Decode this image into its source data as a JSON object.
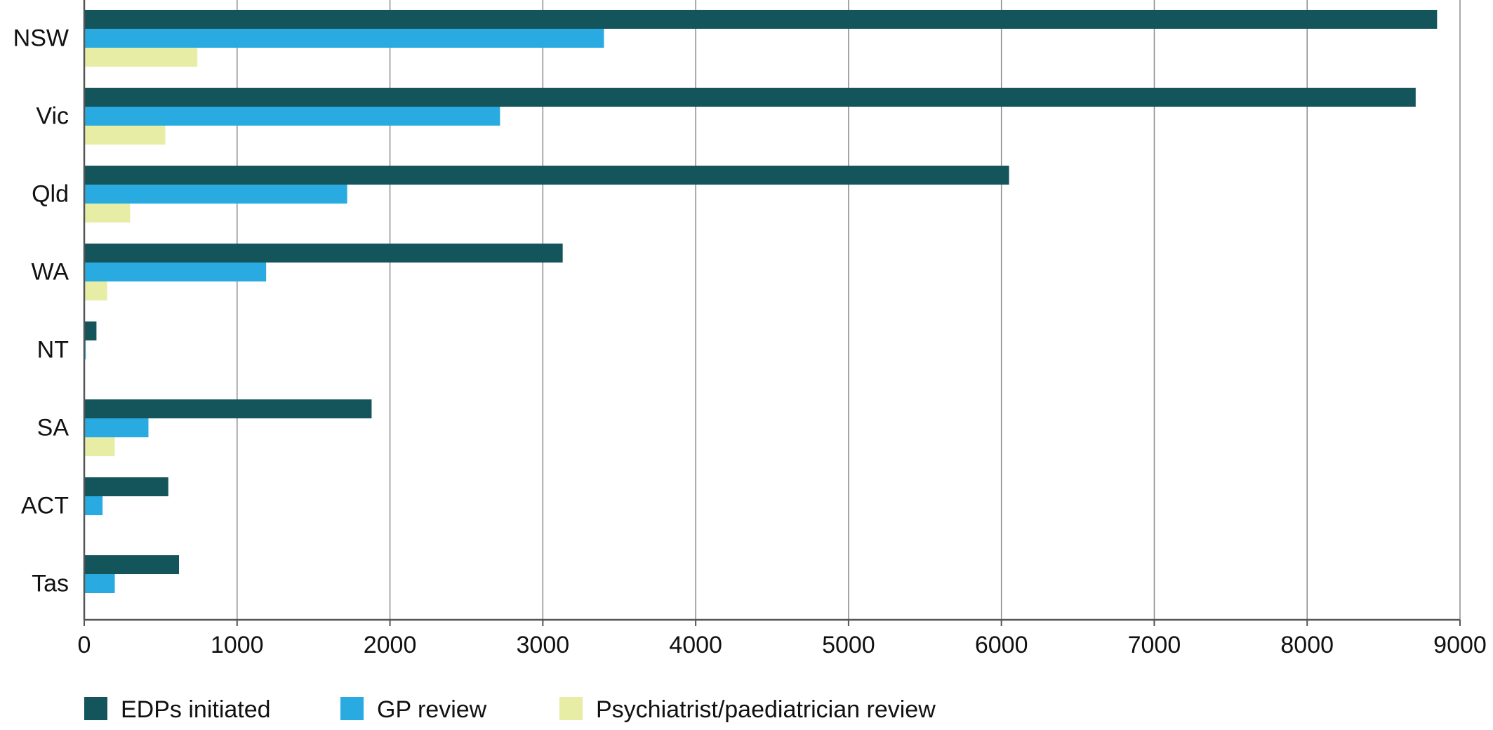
{
  "chart_data": {
    "type": "bar",
    "orientation": "horizontal",
    "categories": [
      "NSW",
      "Vic",
      "Qld",
      "WA",
      "NT",
      "SA",
      "ACT",
      "Tas"
    ],
    "series": [
      {
        "name": "EDPs initiated",
        "color": "#14555c",
        "values": [
          8850,
          8710,
          6050,
          3130,
          80,
          1880,
          550,
          620
        ]
      },
      {
        "name": "GP review",
        "color": "#29abe2",
        "values": [
          3400,
          2720,
          1720,
          1190,
          10,
          420,
          120,
          200
        ]
      },
      {
        "name": "Psychiatrist/paediatrician review",
        "color": "#e8eda6",
        "values": [
          740,
          530,
          300,
          150,
          0,
          200,
          0,
          0
        ]
      }
    ],
    "xlim": [
      0,
      9000
    ],
    "x_ticks": [
      0,
      1000,
      2000,
      3000,
      4000,
      5000,
      6000,
      7000,
      8000,
      9000
    ],
    "title": "",
    "xlabel": "",
    "ylabel": "",
    "grid": "vertical",
    "legend": "bottom"
  },
  "colors": {
    "grid": "#8c8c8c",
    "axis": "#555555"
  }
}
